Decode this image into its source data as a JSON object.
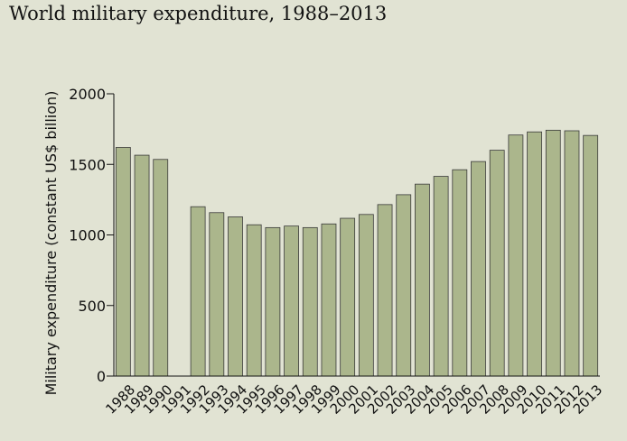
{
  "chart_data": {
    "type": "bar",
    "title": "World military expenditure, 1988–2013",
    "xlabel": "",
    "ylabel": "Military expenditure (constant US$ billion)",
    "ylim": [
      0,
      2000
    ],
    "yticks": [
      0,
      500,
      1000,
      1500,
      2000
    ],
    "categories": [
      "1988",
      "1989",
      "1990",
      "1991",
      "1992",
      "1993",
      "1994",
      "1995",
      "1996",
      "1997",
      "1998",
      "1999",
      "2000",
      "2001",
      "2002",
      "2003",
      "2004",
      "2005",
      "2006",
      "2007",
      "2008",
      "2009",
      "2010",
      "2011",
      "2012",
      "2013"
    ],
    "values": [
      1620,
      1565,
      1535,
      null,
      1200,
      1158,
      1128,
      1072,
      1052,
      1063,
      1052,
      1078,
      1118,
      1145,
      1215,
      1285,
      1360,
      1415,
      1462,
      1520,
      1600,
      1708,
      1730,
      1742,
      1738,
      1705
    ],
    "bar_color": "#abb68c",
    "bar_edge_color": "#3a3a3a",
    "grid": false
  }
}
